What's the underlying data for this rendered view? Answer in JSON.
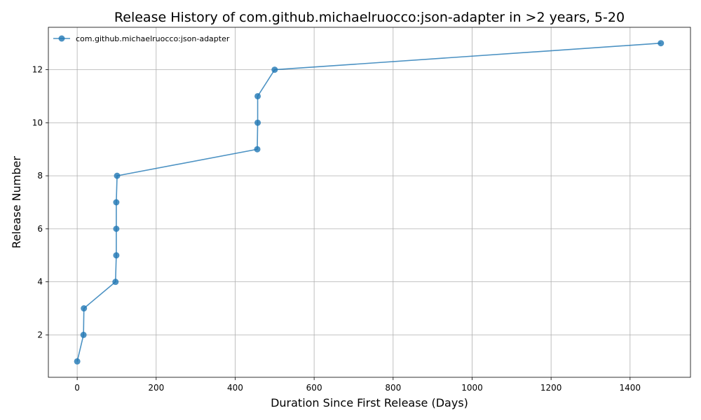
{
  "chart_data": {
    "type": "line",
    "title": "Release History of com.github.michaelruocco:json-adapter in >2 years, 5-20",
    "xlabel": "Duration Since First Release (Days)",
    "ylabel": "Release Number",
    "xlim": [
      -73,
      1553
    ],
    "ylim": [
      0.4,
      13.6
    ],
    "xticks": [
      0,
      200,
      400,
      600,
      800,
      1000,
      1200,
      1400
    ],
    "yticks": [
      2,
      4,
      6,
      8,
      10,
      12
    ],
    "grid": true,
    "legend_position": "top-left",
    "series": [
      {
        "name": "com.github.michaelruocco:json-adapter",
        "color": "#1f77b4",
        "marker": "circle",
        "points": [
          {
            "x": 0,
            "y": 1
          },
          {
            "x": 16,
            "y": 2
          },
          {
            "x": 17,
            "y": 3
          },
          {
            "x": 97,
            "y": 4
          },
          {
            "x": 99,
            "y": 5
          },
          {
            "x": 99,
            "y": 6
          },
          {
            "x": 99,
            "y": 7
          },
          {
            "x": 101,
            "y": 8
          },
          {
            "x": 456,
            "y": 9
          },
          {
            "x": 457,
            "y": 10
          },
          {
            "x": 457,
            "y": 11
          },
          {
            "x": 500,
            "y": 12
          },
          {
            "x": 1478,
            "y": 13
          }
        ]
      }
    ]
  }
}
